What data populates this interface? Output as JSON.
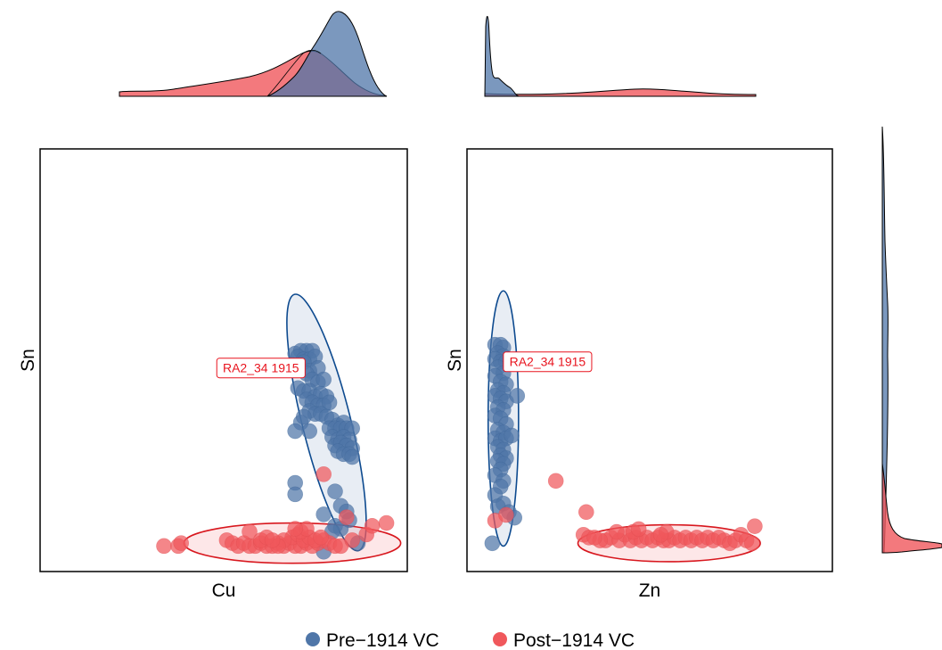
{
  "colors": {
    "pre": "#4f76a8",
    "pre_edge": "#0d4a8f",
    "post": "#f0585c",
    "post_edge": "#d8171e",
    "label": "#e8141e"
  },
  "legend": {
    "items": [
      {
        "label": "Pre−1914 VC",
        "color": "#4f76a8"
      },
      {
        "label": "Post−1914 VC",
        "color": "#f0585c"
      }
    ]
  },
  "chart_data": [
    {
      "type": "scatter",
      "xlabel": "Cu",
      "ylabel": "Sn",
      "xlim": [
        0,
        100
      ],
      "ylim": [
        0,
        100
      ],
      "annotation": {
        "text": "RA2_34 1915",
        "x": 54,
        "y": 65
      },
      "series": [
        {
          "name": "Pre−1914 VC",
          "color": "#4f76a8",
          "points": [
            [
              66,
              70
            ],
            [
              68,
              71
            ],
            [
              70,
              71
            ],
            [
              72,
              71
            ],
            [
              67,
              69
            ],
            [
              69,
              68
            ],
            [
              71,
              68
            ],
            [
              73,
              69
            ],
            [
              65,
              66
            ],
            [
              67,
              65
            ],
            [
              69,
              67
            ],
            [
              71,
              64
            ],
            [
              74,
              65
            ],
            [
              70,
              63
            ],
            [
              72,
              61
            ],
            [
              74,
              60
            ],
            [
              76,
              61
            ],
            [
              67,
              58
            ],
            [
              69,
              57
            ],
            [
              71,
              57
            ],
            [
              73,
              55
            ],
            [
              75,
              56
            ],
            [
              77,
              55
            ],
            [
              70,
              54
            ],
            [
              72,
              53
            ],
            [
              74,
              52
            ],
            [
              76,
              52
            ],
            [
              78,
              53
            ],
            [
              71,
              50
            ],
            [
              73,
              49
            ],
            [
              75,
              49
            ],
            [
              77,
              48
            ],
            [
              68,
              46
            ],
            [
              79,
              47
            ],
            [
              81,
              45
            ],
            [
              83,
              46
            ],
            [
              66,
              43
            ],
            [
              78,
              44
            ],
            [
              80,
              44
            ],
            [
              82,
              44
            ],
            [
              84,
              44
            ],
            [
              86,
              44
            ],
            [
              79,
              41
            ],
            [
              81,
              40
            ],
            [
              83,
              41
            ],
            [
              85,
              40
            ],
            [
              80,
              38
            ],
            [
              82,
              39
            ],
            [
              84,
              38
            ],
            [
              86,
              37
            ],
            [
              81,
              36
            ],
            [
              83,
              35
            ],
            [
              85,
              35
            ],
            [
              86,
              34
            ],
            [
              71,
              43
            ],
            [
              69,
              48
            ],
            [
              66,
              25
            ],
            [
              66,
              21
            ],
            [
              80,
              22
            ],
            [
              82,
              17
            ],
            [
              84,
              15
            ],
            [
              85,
              12
            ],
            [
              76,
              14
            ],
            [
              80,
              10
            ],
            [
              82,
              9
            ],
            [
              79,
              8
            ],
            [
              88,
              4
            ],
            [
              76,
              1
            ]
          ]
        },
        {
          "name": "Post−1914 VC",
          "color": "#f0585c",
          "points": [
            [
              20,
              3
            ],
            [
              25,
              3
            ],
            [
              26,
              4
            ],
            [
              42,
              5
            ],
            [
              44,
              4
            ],
            [
              46,
              3
            ],
            [
              48,
              4
            ],
            [
              50,
              3
            ],
            [
              52,
              3
            ],
            [
              54,
              4
            ],
            [
              56,
              3
            ],
            [
              58,
              3
            ],
            [
              60,
              4
            ],
            [
              62,
              3
            ],
            [
              64,
              4
            ],
            [
              66,
              3
            ],
            [
              68,
              3
            ],
            [
              70,
              4
            ],
            [
              72,
              3
            ],
            [
              74,
              4
            ],
            [
              76,
              5
            ],
            [
              78,
              4
            ],
            [
              80,
              3
            ],
            [
              65,
              6
            ],
            [
              67,
              7
            ],
            [
              69,
              5
            ],
            [
              71,
              6
            ],
            [
              73,
              5
            ],
            [
              75,
              6
            ],
            [
              62,
              5
            ],
            [
              60,
              3
            ],
            [
              68,
              8
            ],
            [
              70,
              9
            ],
            [
              66,
              9
            ],
            [
              50,
              8
            ],
            [
              54,
              5
            ],
            [
              56,
              6
            ],
            [
              58,
              5
            ],
            [
              82,
              3
            ],
            [
              86,
              5
            ],
            [
              84,
              13
            ],
            [
              76,
              28
            ],
            [
              91,
              7
            ],
            [
              93,
              10
            ],
            [
              98,
              11
            ]
          ]
        }
      ],
      "ellipses": [
        {
          "series": "Pre−1914 VC",
          "cx": 77,
          "cy": 46,
          "rx": 8.5,
          "ry": 46,
          "angle_deg": -14
        },
        {
          "series": "Post−1914 VC",
          "cx": 65,
          "cy": 4,
          "rx": 38,
          "ry": 7,
          "angle_deg": 0
        }
      ]
    },
    {
      "type": "scatter",
      "xlabel": "Zn",
      "ylabel": "Sn",
      "xlim": [
        0,
        100
      ],
      "ylim": [
        0,
        100
      ],
      "annotation": {
        "text": "RA2_34 1915",
        "x": 24,
        "y": 68
      },
      "series": [
        {
          "name": "Pre−1914 VC",
          "color": "#4f76a8",
          "points": [
            [
              5,
              74
            ],
            [
              7,
              74
            ],
            [
              8,
              73
            ],
            [
              6,
              71
            ],
            [
              8,
              70
            ],
            [
              5,
              69
            ],
            [
              7,
              68
            ],
            [
              9,
              68
            ],
            [
              6,
              66
            ],
            [
              8,
              64
            ],
            [
              5,
              63
            ],
            [
              7,
              61
            ],
            [
              9,
              60
            ],
            [
              6,
              58
            ],
            [
              8,
              57
            ],
            [
              5,
              56
            ],
            [
              7,
              55
            ],
            [
              9,
              54
            ],
            [
              13,
              56
            ],
            [
              6,
              52
            ],
            [
              8,
              51
            ],
            [
              5,
              49
            ],
            [
              7,
              48
            ],
            [
              9,
              46
            ],
            [
              6,
              44
            ],
            [
              8,
              43
            ],
            [
              5,
              41
            ],
            [
              7,
              40
            ],
            [
              9,
              41
            ],
            [
              6,
              38
            ],
            [
              8,
              37
            ],
            [
              11,
              42
            ],
            [
              7,
              35
            ],
            [
              9,
              34
            ],
            [
              6,
              33
            ],
            [
              8,
              32
            ],
            [
              7,
              30
            ],
            [
              5,
              28
            ],
            [
              8,
              26
            ],
            [
              7,
              24
            ],
            [
              5,
              21
            ],
            [
              8,
              18
            ],
            [
              10,
              15
            ],
            [
              12,
              13
            ],
            [
              4,
              4
            ],
            [
              6,
              17
            ]
          ]
        },
        {
          "name": "Post−1914 VC",
          "color": "#f0585c",
          "points": [
            [
              5,
              12
            ],
            [
              9,
              14
            ],
            [
              27,
              26
            ],
            [
              38,
              15
            ],
            [
              37,
              7
            ],
            [
              39,
              6
            ],
            [
              45,
              5
            ],
            [
              47,
              6
            ],
            [
              50,
              5
            ],
            [
              52,
              7
            ],
            [
              54,
              5
            ],
            [
              56,
              6
            ],
            [
              58,
              5
            ],
            [
              60,
              6
            ],
            [
              62,
              5
            ],
            [
              64,
              6
            ],
            [
              66,
              5
            ],
            [
              68,
              5
            ],
            [
              70,
              6
            ],
            [
              72,
              5
            ],
            [
              74,
              6
            ],
            [
              76,
              5
            ],
            [
              78,
              6
            ],
            [
              80,
              5
            ],
            [
              82,
              6
            ],
            [
              84,
              5
            ],
            [
              86,
              6
            ],
            [
              88,
              5
            ],
            [
              90,
              4
            ],
            [
              92,
              5
            ],
            [
              94,
              7
            ],
            [
              96,
              5
            ],
            [
              98,
              4
            ],
            [
              99,
              10
            ],
            [
              55,
              8
            ],
            [
              57,
              9
            ],
            [
              49,
              8
            ],
            [
              43,
              5
            ],
            [
              41,
              6
            ],
            [
              67,
              8
            ],
            [
              65,
              7
            ]
          ]
        }
      ],
      "ellipses": [
        {
          "series": "Pre−1914 VC",
          "cx": 8,
          "cy": 48,
          "rx": 5.5,
          "ry": 45,
          "angle_deg": 0
        },
        {
          "series": "Post−1914 VC",
          "cx": 68,
          "cy": 4,
          "rx": 33,
          "ry": 6.5,
          "angle_deg": 0
        }
      ]
    }
  ]
}
